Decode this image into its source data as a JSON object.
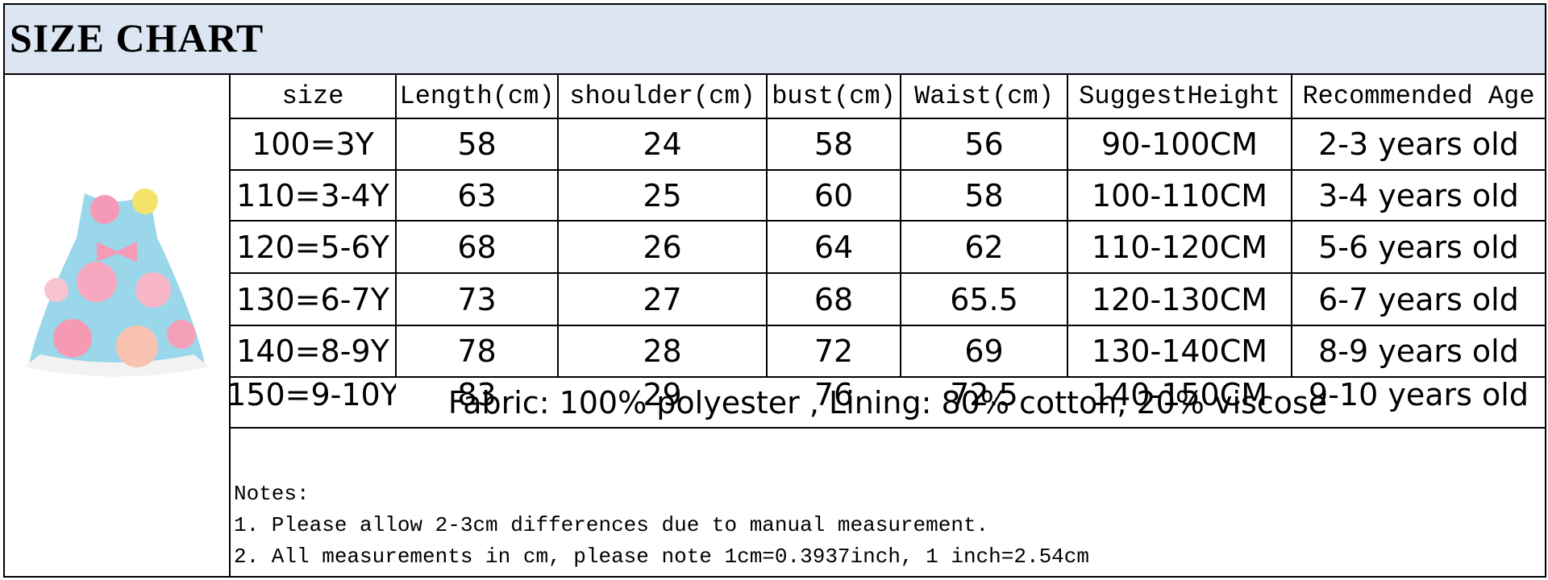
{
  "header": {
    "title": "SIZE CHART"
  },
  "table": {
    "columns": [
      "size",
      "Length(cm)",
      "shoulder(cm)",
      "bust(cm)",
      "Waist(cm)",
      "SuggestHeight",
      "Recommended Age"
    ],
    "rows": [
      [
        "100=3Y",
        58,
        24,
        58,
        56,
        "90-100CM",
        "2-3 years old"
      ],
      [
        "110=3-4Y",
        63,
        25,
        60,
        58,
        "100-110CM",
        "3-4 years old"
      ],
      [
        "120=5-6Y",
        68,
        26,
        64,
        62,
        "110-120CM",
        "5-6 years old"
      ],
      [
        "130=6-7Y",
        73,
        27,
        68,
        65.5,
        "120-130CM",
        "6-7 years old"
      ],
      [
        "140=8-9Y",
        78,
        28,
        72,
        69,
        "130-140CM",
        "8-9 years old"
      ],
      [
        "150=9-10Y",
        83,
        29,
        76,
        72.5,
        "140-150CM",
        "9-10 years old"
      ]
    ]
  },
  "fabric": "Fabric: 100% polyester , Lining: 80% cotton, 20% viscose",
  "notes": {
    "title": "Notes:",
    "items": [
      "1. Please allow 2-3cm differences due to manual measurement.",
      "2. All measurements in cm, please note 1cm=0.3937inch, 1 inch=2.54cm"
    ]
  }
}
